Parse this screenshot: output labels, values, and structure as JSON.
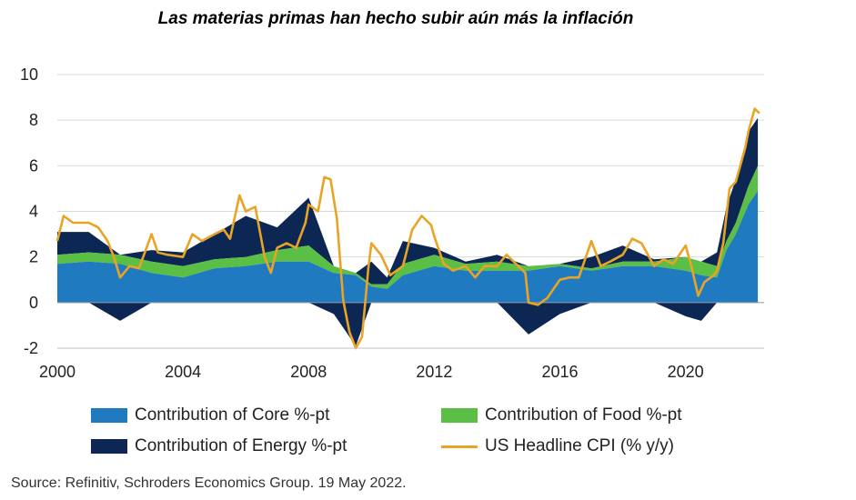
{
  "chart_data": {
    "type": "area",
    "title": "Las materias primas han hecho subir aún más la inflación",
    "xlabel": "",
    "ylabel": "",
    "xlim": [
      2000,
      2022.5
    ],
    "ylim": [
      -2,
      10
    ],
    "yticks": [
      -2,
      0,
      2,
      4,
      6,
      8,
      10
    ],
    "xticks": [
      2000,
      2004,
      2008,
      2012,
      2016,
      2020
    ],
    "grid": true,
    "series": [
      {
        "name": "Contribution of Core %-pt",
        "kind": "stacked-area",
        "color": "#1f7ac0",
        "x": [
          2000,
          2001,
          2002,
          2003,
          2004,
          2005,
          2006,
          2007,
          2008,
          2008.8,
          2009.5,
          2010,
          2010.5,
          2011,
          2012,
          2013,
          2014,
          2015,
          2016,
          2017,
          2018,
          2019,
          2020,
          2020.5,
          2021,
          2021.3,
          2021.6,
          2022,
          2022.3
        ],
        "values": [
          1.7,
          1.8,
          1.7,
          1.3,
          1.1,
          1.5,
          1.6,
          1.8,
          1.8,
          1.3,
          1.2,
          0.7,
          0.6,
          1.2,
          1.6,
          1.4,
          1.4,
          1.4,
          1.6,
          1.4,
          1.6,
          1.6,
          1.4,
          1.2,
          1.1,
          2.3,
          3.0,
          4.3,
          4.9
        ]
      },
      {
        "name": "Contribution of Food %-pt",
        "kind": "stacked-area",
        "color": "#5cbf45",
        "x": [
          2000,
          2001,
          2002,
          2003,
          2004,
          2005,
          2006,
          2007,
          2008,
          2008.8,
          2009.5,
          2010,
          2010.5,
          2011,
          2012,
          2013,
          2014,
          2015,
          2016,
          2017,
          2018,
          2019,
          2020,
          2020.5,
          2021,
          2021.3,
          2021.6,
          2022,
          2022.3
        ],
        "values": [
          0.4,
          0.4,
          0.4,
          0.5,
          0.5,
          0.4,
          0.4,
          0.5,
          0.7,
          0.3,
          0.1,
          0.1,
          0.2,
          0.5,
          0.5,
          0.3,
          0.4,
          0.2,
          0.1,
          0.1,
          0.2,
          0.2,
          0.6,
          0.6,
          0.5,
          0.4,
          0.5,
          0.8,
          1.1
        ]
      },
      {
        "name": "Contribution of Energy %-pt",
        "kind": "diverging-area",
        "color": "#0c2753",
        "x": [
          2000,
          2001,
          2002,
          2003,
          2004,
          2005,
          2006,
          2007,
          2008,
          2008.8,
          2009.5,
          2010,
          2010.5,
          2011,
          2012,
          2013,
          2014,
          2015,
          2016,
          2017,
          2018,
          2019,
          2020,
          2020.5,
          2021,
          2021.3,
          2021.6,
          2022,
          2022.3
        ],
        "values": [
          1.0,
          0.9,
          -0.8,
          0.5,
          0.6,
          1.1,
          1.8,
          1.0,
          2.1,
          -0.5,
          -1.9,
          1.0,
          0.3,
          1.0,
          0.3,
          0.1,
          0.3,
          -1.4,
          -0.5,
          0.5,
          0.7,
          0.1,
          -0.6,
          -0.8,
          0.6,
          1.5,
          1.9,
          2.4,
          2.1
        ]
      },
      {
        "name": "US Headline CPI (% y/y)",
        "kind": "line",
        "color": "#e9a325",
        "x": [
          2000,
          2000.2,
          2000.5,
          2001,
          2001.3,
          2001.6,
          2001.8,
          2002,
          2002.3,
          2002.6,
          2003,
          2003.2,
          2003.5,
          2004,
          2004.3,
          2004.6,
          2005,
          2005.3,
          2005.5,
          2005.8,
          2006,
          2006.3,
          2006.6,
          2006.8,
          2007,
          2007.3,
          2007.6,
          2007.9,
          2008,
          2008.3,
          2008.5,
          2008.7,
          2008.9,
          2009.1,
          2009.3,
          2009.5,
          2009.7,
          2009.9,
          2010,
          2010.3,
          2010.6,
          2011,
          2011.3,
          2011.6,
          2011.9,
          2012,
          2012.3,
          2012.6,
          2013,
          2013.3,
          2013.6,
          2014,
          2014.3,
          2014.6,
          2014.9,
          2015,
          2015.3,
          2015.6,
          2016,
          2016.3,
          2016.6,
          2017,
          2017.3,
          2017.6,
          2018,
          2018.3,
          2018.6,
          2019,
          2019.3,
          2019.6,
          2020,
          2020.2,
          2020.4,
          2020.6,
          2020.9,
          2021,
          2021.2,
          2021.4,
          2021.6,
          2021.9,
          2022,
          2022.2,
          2022.35
        ],
        "values": [
          2.7,
          3.8,
          3.5,
          3.5,
          3.3,
          2.7,
          2.0,
          1.1,
          1.6,
          1.5,
          3.0,
          2.2,
          2.1,
          2.0,
          3.0,
          2.7,
          3.0,
          3.2,
          2.8,
          4.7,
          4.0,
          4.2,
          2.0,
          1.3,
          2.4,
          2.6,
          2.4,
          3.5,
          4.3,
          4.0,
          5.5,
          5.4,
          3.7,
          0.1,
          -1.3,
          -2.0,
          -1.5,
          1.5,
          2.6,
          2.1,
          1.2,
          1.6,
          3.2,
          3.8,
          3.4,
          2.9,
          1.7,
          1.4,
          1.6,
          1.1,
          1.6,
          1.6,
          2.1,
          1.7,
          1.3,
          0.0,
          -0.1,
          0.2,
          1.0,
          1.1,
          1.1,
          2.7,
          1.6,
          1.8,
          2.1,
          2.8,
          2.6,
          1.6,
          1.9,
          1.7,
          2.5,
          1.5,
          0.3,
          0.9,
          1.2,
          1.4,
          2.6,
          5.0,
          5.3,
          6.8,
          7.5,
          8.5,
          8.3
        ]
      }
    ]
  },
  "legend": {
    "core": "Contribution of Core %-pt",
    "food": "Contribution of Food %-pt",
    "energy": "Contribution of Energy %-pt",
    "cpi": "US Headline CPI (% y/y)"
  },
  "source": "Source: Refinitiv, Schroders Economics Group. 19 May 2022."
}
